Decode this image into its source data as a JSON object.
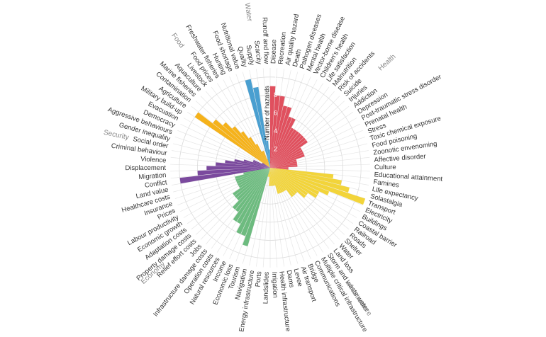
{
  "chart_data": {
    "type": "radial_bar",
    "axis_label": "Number of hazards",
    "ylim": [
      0,
      11
    ],
    "yticks": [
      2,
      4,
      6,
      8,
      10
    ],
    "series": [
      {
        "name": "Health",
        "color": "#e0505e",
        "categories": [
          "Disease",
          "Recreation",
          "Air quality hazard",
          "Death",
          "Pathogen diseases",
          "Mental health",
          "Vector-borne disease",
          "Children's health",
          "Life satisfaction",
          "Malnutrition",
          "Risk of accidents",
          "Suicide",
          "Injuries",
          "Addiction",
          "Depression",
          "Post-traumatic stress disorder",
          "Prenatal health",
          "Stress",
          "Toxic chemical exposure",
          "Food poisoning",
          "Zoonotic envenoming",
          "Affective disorder",
          "Culture",
          "Educational attainment"
        ],
        "values": [
          9,
          8,
          8,
          7,
          7,
          6,
          6,
          5,
          5,
          5,
          5,
          5,
          5,
          5,
          4,
          4,
          4,
          4,
          3,
          3,
          3,
          3,
          2,
          2
        ]
      },
      {
        "name": "Infrastructure",
        "color": "#f2d43a",
        "categories": [
          "Famines",
          "Life expectancy",
          "Solastalgia",
          "Transport",
          "Electricity",
          "Buildings",
          "Coastal barrier",
          "Railroad",
          "Roads",
          "Shelter",
          "Water",
          "Land loss",
          "Storm and waste water",
          "Multiple critical infrastructure",
          "Communications",
          "Bridge",
          "Air transport",
          "Levee",
          "Dams",
          "Health infrastructure",
          "Irrigation",
          "Landslides",
          "Ports",
          "Energy infrastructure",
          "Navigation"
        ],
        "values": [
          7,
          8,
          9,
          11,
          7,
          6,
          6,
          5,
          5,
          4,
          4,
          4,
          3,
          3,
          3,
          3,
          3,
          2,
          2,
          2,
          2,
          2,
          1,
          1,
          1
        ]
      },
      {
        "name": "Economy",
        "color": "#6dbb7f",
        "categories": [
          "Tourism",
          "Economic loss",
          "Income",
          "Natural resources",
          "Operation costs",
          "Infrastructure damage costs",
          "Jobs",
          "Relief effort costs",
          "Property damage costs",
          "Adaptation costs",
          "Economic growth",
          "Labour productivity",
          "Prices",
          "Insurance",
          "Healthcare costs",
          "Land value"
        ],
        "values": [
          9,
          8,
          8,
          7,
          7,
          6,
          6,
          5,
          5,
          5,
          4,
          4,
          4,
          4,
          4,
          3
        ]
      },
      {
        "name": "Security",
        "color": "#7b4a9e",
        "categories": [
          "Conflict",
          "Migration",
          "Displacement",
          "Violence",
          "Criminal behaviour",
          "Social order",
          "Gender inequality",
          "Aggressive behaviours",
          "Democracy",
          "Evacuation",
          "Military build-up"
        ],
        "values": [
          10,
          8,
          7,
          6,
          5,
          4,
          3,
          2,
          2,
          1,
          1
        ]
      },
      {
        "name": "Food",
        "color": "#f5b21b",
        "categories": [
          "Agriculture",
          "Contamination",
          "Marine fisheries",
          "Aquaculture",
          "Livestock",
          "Food prices",
          "Freshwater fisheries",
          "Hunting",
          "Food shortage",
          "Nutritional value"
        ],
        "values": [
          10,
          8,
          7,
          6,
          5,
          4,
          3,
          2,
          2,
          1
        ]
      },
      {
        "name": "Water",
        "color": "#4a9fd0",
        "categories": [
          "Quality",
          "Supply",
          "Scarcity",
          "Runoff and flow"
        ],
        "values": [
          10,
          9,
          3,
          2
        ]
      }
    ]
  }
}
